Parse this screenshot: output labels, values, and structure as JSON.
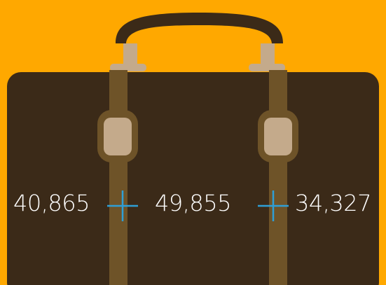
{
  "colors": {
    "background": "#ffa800",
    "suitcase_body": "#3b2a18",
    "handle": "#3b2a18",
    "strap": "#6e5328",
    "buckle_frame": "#6e5328",
    "buckle_inner": "#c4aa8b",
    "connector": "#c4aa8b",
    "plus_sign": "#2e9fd6",
    "number_text": "#ffffff"
  },
  "icons": {
    "plus_1": "plus-icon",
    "plus_2": "plus-icon"
  },
  "values": {
    "first": "40,865",
    "second": "49,855",
    "third": "34,327"
  }
}
